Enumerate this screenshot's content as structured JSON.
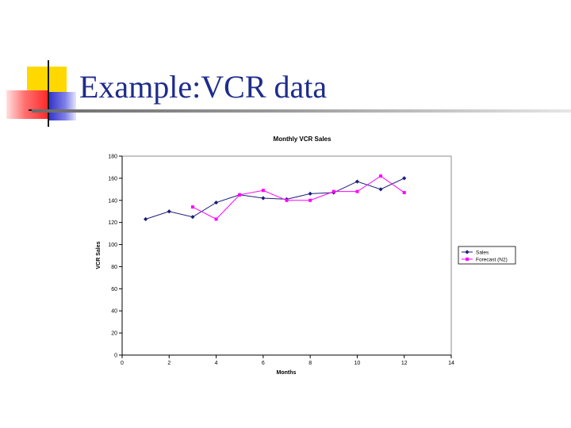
{
  "slide": {
    "title": "Example:VCR data"
  },
  "decor": {
    "yellow": "#ffd800",
    "red": "#ff3a3a",
    "blue": "#3a3ad8",
    "title_color": "#1e2c8c"
  },
  "chart_data": {
    "type": "line",
    "title": "Monthly VCR Sales",
    "xlabel": "Months",
    "ylabel": "VCR Sales",
    "xlim": [
      0,
      14
    ],
    "ylim": [
      0,
      180
    ],
    "x_ticks": [
      0,
      2,
      4,
      6,
      8,
      10,
      12,
      14
    ],
    "y_ticks": [
      0,
      20,
      40,
      60,
      80,
      100,
      120,
      140,
      160,
      180
    ],
    "grid": false,
    "legend_position": "right",
    "series": [
      {
        "name": "Sales",
        "color": "#1c1c7a",
        "marker": "diamond",
        "x": [
          1,
          2,
          3,
          4,
          5,
          6,
          7,
          8,
          9,
          10,
          11,
          12
        ],
        "y": [
          123,
          130,
          125,
          138,
          145,
          142,
          141,
          146,
          147,
          157,
          150,
          160
        ]
      },
      {
        "name": "Forecast (N2)",
        "color": "#ff00ff",
        "marker": "square",
        "x": [
          3,
          4,
          5,
          6,
          7,
          8,
          9,
          10,
          11,
          12
        ],
        "y": [
          134,
          123,
          145,
          149,
          140,
          140,
          148,
          148,
          162,
          147
        ]
      }
    ]
  }
}
